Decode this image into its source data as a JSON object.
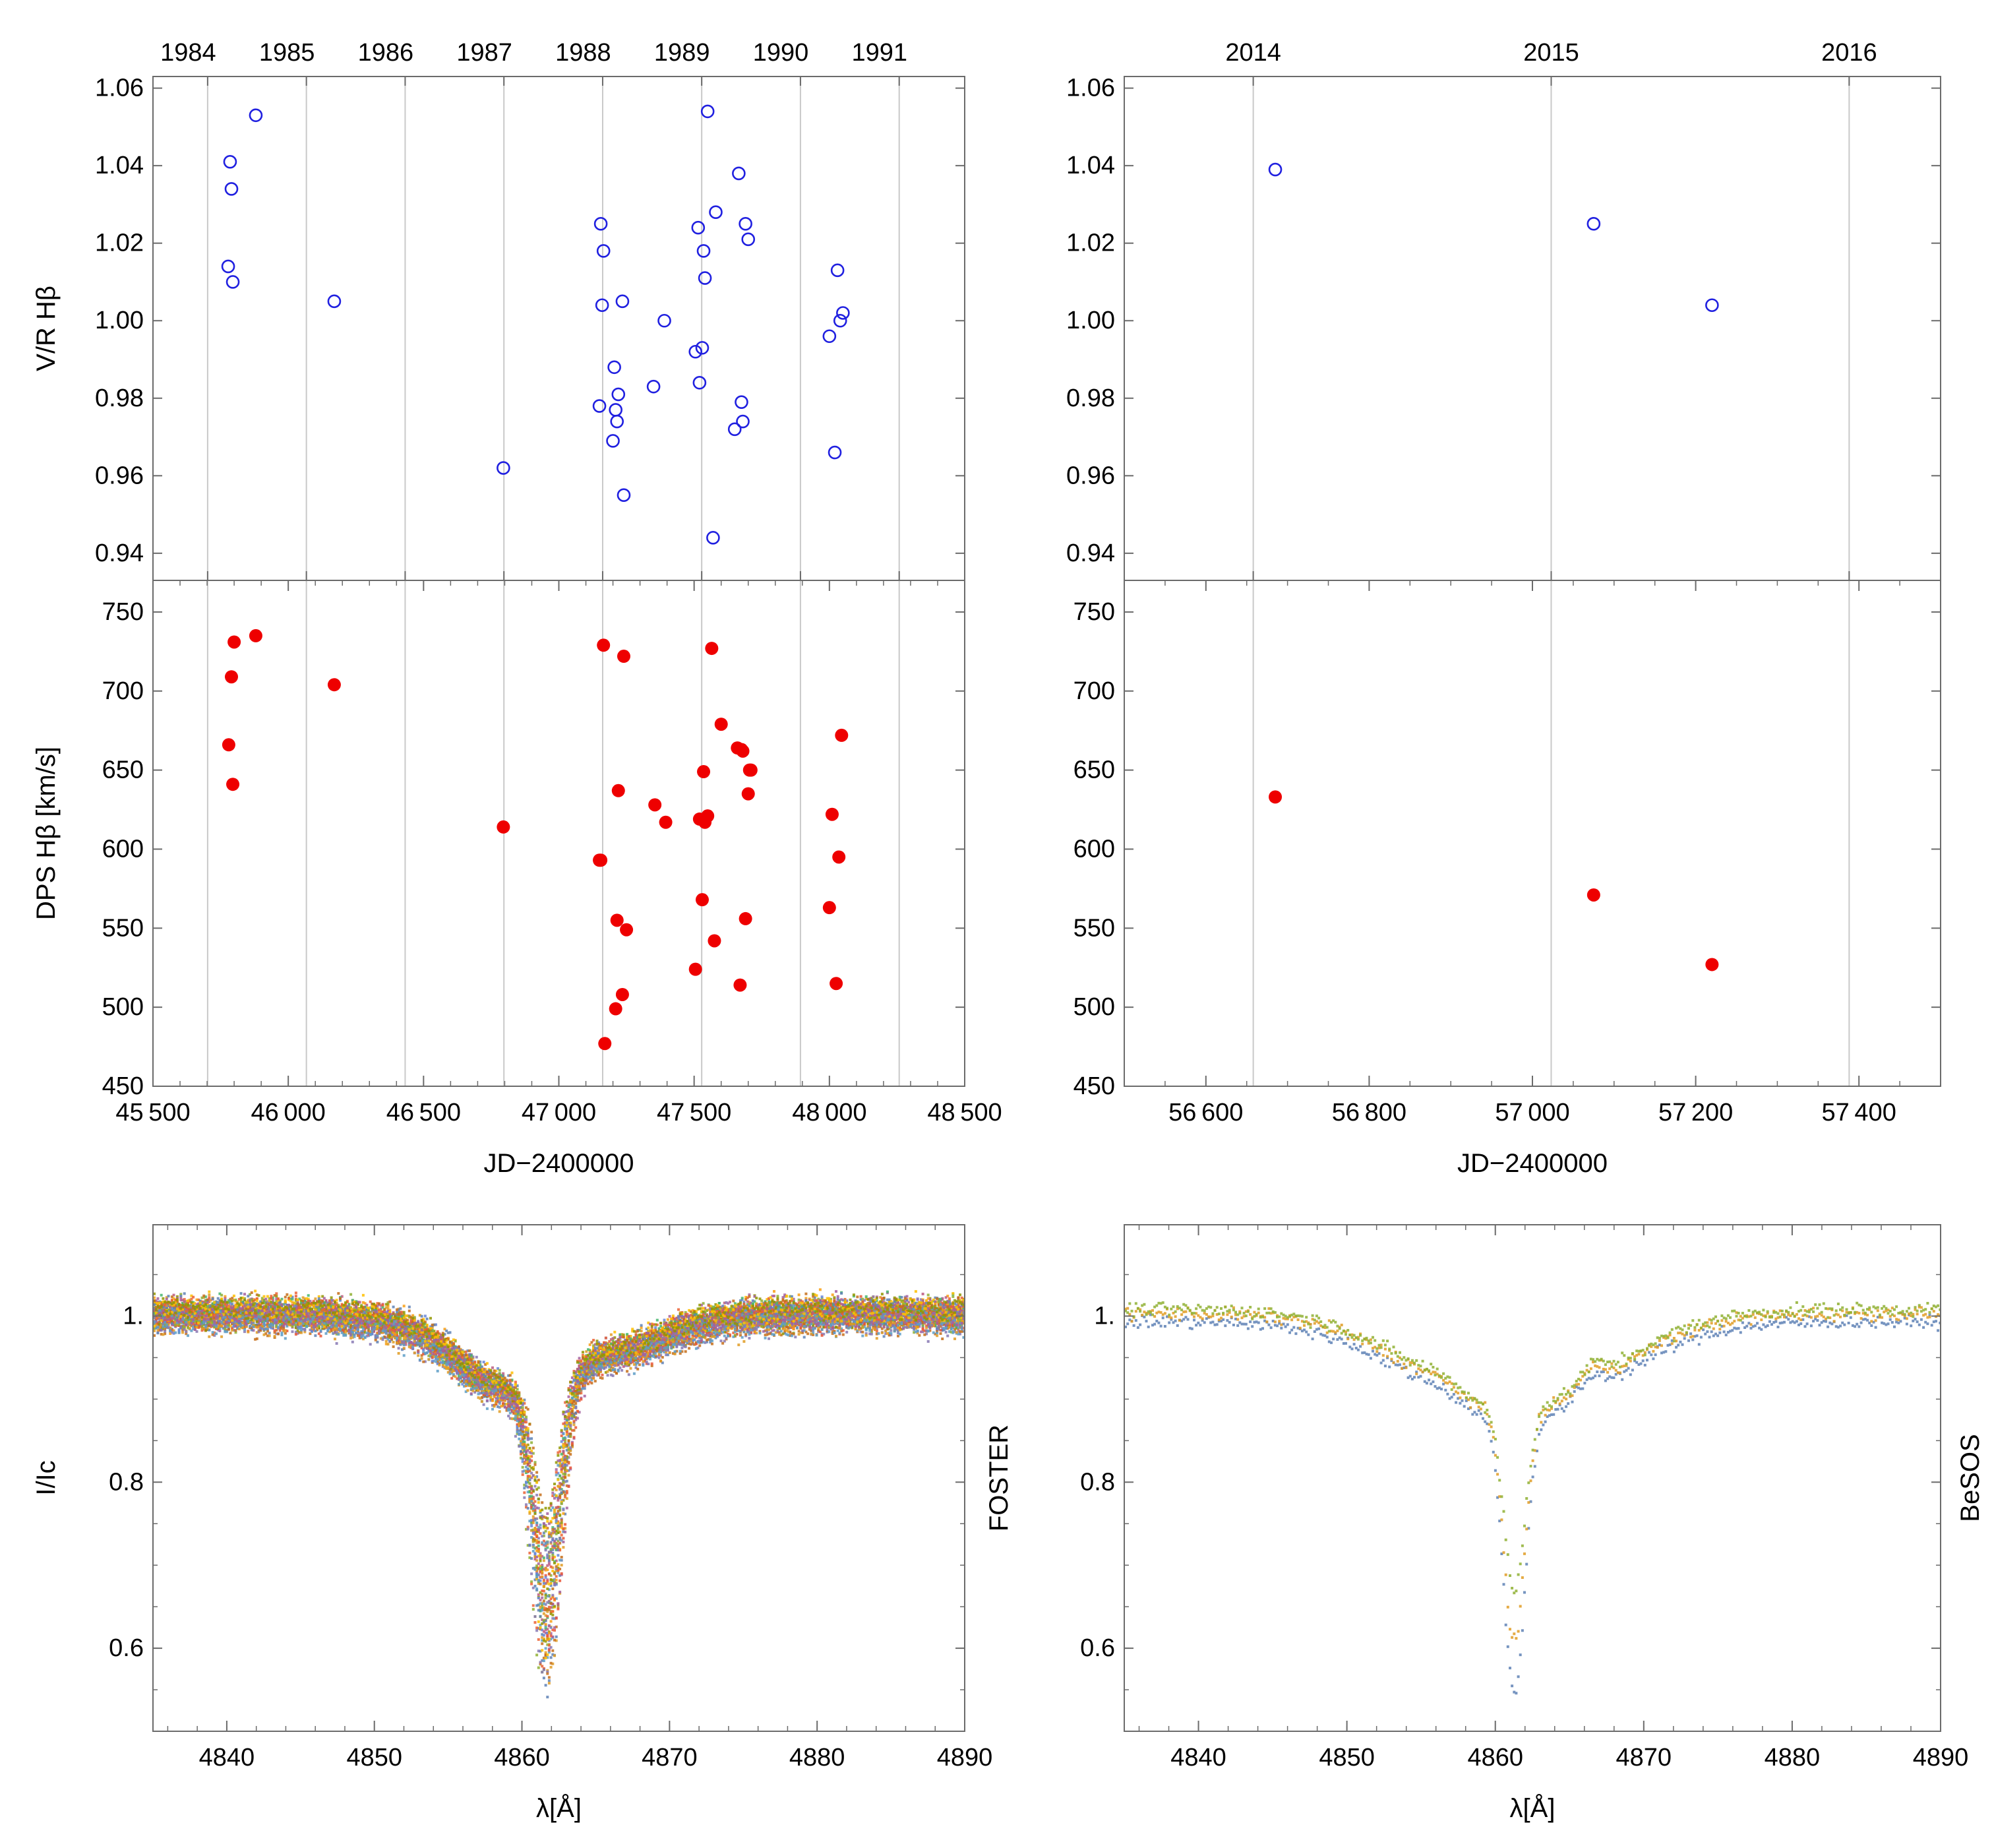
{
  "figure": {
    "side_labels": [
      "FOSTER",
      "BeSOS"
    ]
  },
  "chart_data": [
    {
      "id": "vr_foster",
      "type": "scatter",
      "marker": "open-circle",
      "color": "#2020e0",
      "ylabel": "V/R Hβ",
      "xlim": [
        45500,
        48500
      ],
      "ylim": [
        0.933,
        1.063
      ],
      "yticks": [
        0.94,
        0.96,
        0.98,
        1.0,
        1.02,
        1.04,
        1.06
      ],
      "ytick_labels": [
        "0.94",
        "0.96",
        "0.98",
        "1.00",
        "1.02",
        "1.04",
        "1.06"
      ],
      "year_labels": [
        "1984",
        "1985",
        "1986",
        "1987",
        "1988",
        "1989",
        "1990",
        "1991"
      ],
      "year_jd": [
        45702,
        46067,
        46432,
        46797,
        47162,
        47528,
        47893,
        48258
      ],
      "year_label_jd": [
        45630,
        45995,
        46360,
        46725,
        47090,
        47455,
        47820,
        48185
      ],
      "x": [
        45778,
        45785,
        45790,
        45795,
        45880,
        46170,
        46795,
        47150,
        47155,
        47160,
        47165,
        47200,
        47205,
        47210,
        47215,
        47220,
        47235,
        47240,
        47350,
        47390,
        47505,
        47515,
        47520,
        47530,
        47535,
        47540,
        47550,
        47570,
        47580,
        47650,
        47665,
        47675,
        47680,
        47690,
        47700,
        48000,
        48020,
        48030,
        48040,
        48050
      ],
      "y": [
        1.014,
        1.041,
        1.034,
        1.01,
        1.053,
        1.005,
        0.962,
        0.978,
        1.025,
        1.004,
        1.018,
        0.969,
        0.988,
        0.977,
        0.974,
        0.981,
        1.005,
        0.955,
        0.983,
        1.0,
        0.992,
        1.024,
        0.984,
        0.993,
        1.018,
        1.011,
        1.054,
        0.944,
        1.028,
        0.972,
        1.038,
        0.979,
        0.974,
        1.025,
        1.021,
        0.996,
        0.966,
        1.013,
        1.0,
        1.002
      ]
    },
    {
      "id": "vr_besos",
      "type": "scatter",
      "marker": "open-circle",
      "color": "#2020e0",
      "xlim": [
        56500,
        57500
      ],
      "ylim": [
        0.933,
        1.063
      ],
      "yticks": [
        0.94,
        0.96,
        0.98,
        1.0,
        1.02,
        1.04,
        1.06
      ],
      "ytick_labels": [
        "0.94",
        "0.96",
        "0.98",
        "1.00",
        "1.02",
        "1.04",
        "1.06"
      ],
      "year_labels": [
        "2014",
        "2015",
        "2016"
      ],
      "year_jd": [
        56658,
        57023,
        57388
      ],
      "year_label_jd": [
        56658,
        57023,
        57388
      ],
      "x": [
        56685,
        57075,
        57220
      ],
      "y": [
        1.039,
        1.025,
        1.004
      ]
    },
    {
      "id": "dps_foster",
      "type": "scatter",
      "marker": "filled-circle",
      "color": "#ee0000",
      "ylabel": "DPS Hβ [km/s]",
      "xlabel": "JD−2400000",
      "xlim": [
        45500,
        48500
      ],
      "ylim": [
        450,
        770
      ],
      "yticks": [
        450,
        500,
        550,
        600,
        650,
        700,
        750
      ],
      "ytick_labels": [
        "450",
        "500",
        "550",
        "600",
        "650",
        "700",
        "750"
      ],
      "xticks": [
        45500,
        46000,
        46500,
        47000,
        47500,
        48000,
        48500
      ],
      "xtick_labels": [
        "45 500",
        "46 000",
        "46 500",
        "47 000",
        "47 500",
        "48 000",
        "48 500"
      ],
      "year_jd": [
        45702,
        46067,
        46432,
        46797,
        47162,
        47528,
        47893,
        48258
      ],
      "x": [
        45780,
        45790,
        45795,
        45800,
        45880,
        46170,
        46795,
        47150,
        47155,
        47165,
        47170,
        47210,
        47215,
        47220,
        47235,
        47240,
        47250,
        47355,
        47395,
        47505,
        47520,
        47530,
        47535,
        47540,
        47550,
        47565,
        47575,
        47600,
        47660,
        47670,
        47675,
        47680,
        47690,
        47700,
        47705,
        47710,
        48000,
        48010,
        48025,
        48035,
        48045
      ],
      "y": [
        666,
        709,
        641,
        731,
        735,
        704,
        614,
        593,
        593,
        729,
        477,
        499,
        555,
        637,
        508,
        722,
        549,
        628,
        617,
        524,
        619,
        568,
        649,
        617,
        621,
        727,
        542,
        679,
        664,
        514,
        663,
        662,
        556,
        635,
        650,
        650,
        563,
        622,
        515,
        595,
        672
      ]
    },
    {
      "id": "dps_besos",
      "type": "scatter",
      "marker": "filled-circle",
      "color": "#ee0000",
      "xlabel": "JD−2400000",
      "xlim": [
        56500,
        57500
      ],
      "ylim": [
        450,
        770
      ],
      "yticks": [
        450,
        500,
        550,
        600,
        650,
        700,
        750
      ],
      "ytick_labels": [
        "450",
        "500",
        "550",
        "600",
        "650",
        "700",
        "750"
      ],
      "xticks": [
        56600,
        56800,
        57000,
        57200,
        57400
      ],
      "xtick_labels": [
        "56 600",
        "56 800",
        "57 000",
        "57 200",
        "57 400"
      ],
      "year_jd": [
        56658,
        57023,
        57388
      ],
      "x": [
        56685,
        57075,
        57220
      ],
      "y": [
        633,
        571,
        527
      ]
    },
    {
      "id": "profile_foster",
      "type": "line",
      "ylabel": "I/Ic",
      "xlabel": "λ[Å]",
      "xlim": [
        4835,
        4890
      ],
      "ylim": [
        0.5,
        1.11
      ],
      "yticks": [
        0.6,
        0.8,
        1.0
      ],
      "ytick_labels": [
        "0.6",
        "0.8",
        "1."
      ],
      "xticks": [
        4840,
        4850,
        4860,
        4870,
        4880,
        4890
      ],
      "xtick_labels": [
        "4840",
        "4850",
        "4860",
        "4870",
        "4880",
        "4890"
      ],
      "n_spectra": 40,
      "spectrum_colors": [
        "#5e81b5",
        "#e19c24",
        "#8fb032",
        "#eb6235",
        "#8778b3",
        "#c56e1a",
        "#5d9ec7",
        "#ffbf00",
        "#a5609d",
        "#929600",
        "#e95536",
        "#6685d9",
        "#f89f13",
        "#bc5b80",
        "#47b66d"
      ],
      "continuum": 1.0,
      "line_center": 4861.6,
      "min_depth_range": [
        0.56,
        0.75
      ]
    },
    {
      "id": "profile_besos",
      "type": "line",
      "xlabel": "λ[Å]",
      "xlim": [
        4835,
        4890
      ],
      "ylim": [
        0.5,
        1.11
      ],
      "yticks": [
        0.6,
        0.8,
        1.0
      ],
      "ytick_labels": [
        "0.6",
        "0.8",
        "1."
      ],
      "xticks": [
        4840,
        4850,
        4860,
        4870,
        4880,
        4890
      ],
      "xtick_labels": [
        "4840",
        "4850",
        "4860",
        "4870",
        "4880",
        "4890"
      ],
      "n_spectra": 3,
      "spectrum_colors": [
        "#5e81b5",
        "#e19c24",
        "#8fb032"
      ],
      "continuum": 1.0,
      "line_center": 4861.2,
      "min_depth_range": [
        0.55,
        0.66
      ]
    }
  ]
}
